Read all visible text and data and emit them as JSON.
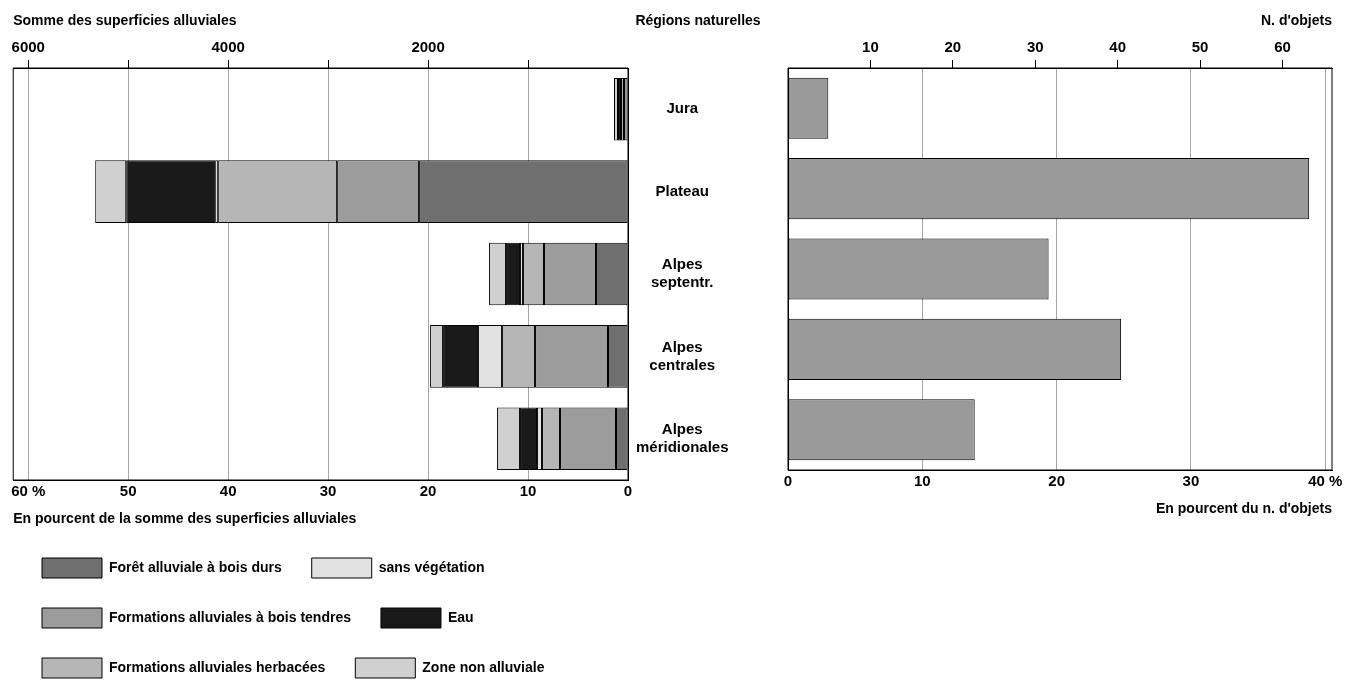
{
  "chart_data": [
    {
      "type": "bar",
      "orientation": "horizontal",
      "stacked": true,
      "x2label": "Somme des superficies alluviales",
      "ylabel": "Régions naturelles",
      "xlabel": "En pourcent de la somme des superficies alluviales",
      "categories": [
        "Jura",
        "Plateau",
        "Alpes septentr.",
        "Alpes centrales",
        "Alpes méridionales"
      ],
      "series": [
        {
          "name": "Forêt alluviale à bois durs",
          "color": "#6f6f6f",
          "values": [
            null,
            20.9,
            3.2,
            2.0,
            1.2
          ]
        },
        {
          "name": "Formations alluviales à bois tendres",
          "color": "#9c9c9c",
          "values": [
            0.4,
            8.2,
            5.2,
            7.3,
            5.6
          ]
        },
        {
          "name": "Formations alluviales herbacées",
          "color": "#b6b6b6",
          "values": [
            0.3,
            11.9,
            2.1,
            3.3,
            1.8
          ]
        },
        {
          "name": "sans végétation",
          "color": "#e2e2e2",
          "values": [
            null,
            0.3,
            0.3,
            2.4,
            0.5
          ]
        },
        {
          "name": "Eau",
          "color": "#1a1a1a",
          "values": [
            0.3,
            8.9,
            1.4,
            3.5,
            1.7
          ]
        },
        {
          "name": "Zone non alluviale",
          "color": "#d0d0d0",
          "values": [
            0.4,
            3.1,
            1.7,
            1.3,
            2.3
          ]
        }
      ],
      "xlim": [
        61.5,
        0
      ],
      "xticks": [
        {
          "value": 60,
          "label": "60 %"
        },
        50,
        40,
        30,
        20,
        10,
        0
      ],
      "x2lim": [
        6150,
        0
      ],
      "x2ticks": [
        6000,
        {
          "value": 5000,
          "label": null
        },
        4000,
        {
          "value": 3000,
          "label": null
        },
        2000,
        {
          "value": 1000,
          "label": null
        }
      ],
      "grid": "x",
      "legend": "bottom"
    },
    {
      "type": "bar",
      "orientation": "horizontal",
      "x2label": "N. d'objets",
      "xlabel": "En pourcent du n. d'objets",
      "categories": [
        null,
        null,
        null,
        null,
        null
      ],
      "values": [
        3.0,
        38.8,
        19.4,
        24.8,
        13.9
      ],
      "color": "#9a9a9a",
      "xlim": [
        0,
        40.5
      ],
      "xticks": [
        0,
        10,
        20,
        30,
        {
          "value": 40,
          "label": "40 %"
        }
      ],
      "x2lim": [
        0,
        66
      ],
      "x2ticks": [
        10,
        20,
        30,
        40,
        50,
        60
      ],
      "grid": "x"
    }
  ]
}
